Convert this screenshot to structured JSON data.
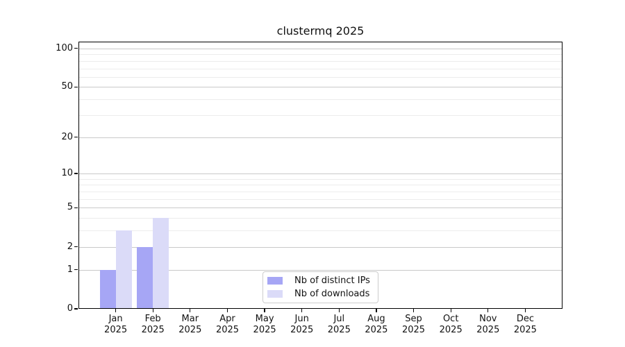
{
  "title": "clustermq 2025",
  "chart_data": {
    "type": "bar",
    "title": "clustermq 2025",
    "categories": [
      "Jan",
      "Feb",
      "Mar",
      "Apr",
      "May",
      "Jun",
      "Jul",
      "Aug",
      "Sep",
      "Oct",
      "Nov",
      "Dec"
    ],
    "year_label": "2025",
    "series": [
      {
        "name": "Nb of distinct IPs",
        "color": "#a6a6f5",
        "values": [
          1,
          2,
          0,
          0,
          0,
          0,
          0,
          0,
          0,
          0,
          0,
          0
        ]
      },
      {
        "name": "Nb of downloads",
        "color": "#dbdbf8",
        "values": [
          3,
          4,
          0,
          0,
          0,
          0,
          0,
          0,
          0,
          0,
          0,
          0
        ]
      }
    ],
    "xlabel": "",
    "ylabel": "",
    "yscale": "log1p",
    "yticks": [
      0,
      1,
      2,
      5,
      10,
      20,
      50,
      100
    ],
    "minor_gridlines": [
      3,
      4,
      6,
      7,
      8,
      9,
      30,
      40,
      60,
      70,
      80,
      90
    ],
    "ylim": [
      0,
      113
    ],
    "grid": true,
    "legend_position": "lower center"
  },
  "colors": {
    "major_grid": "#c9c9c9",
    "minor_grid": "#ececec",
    "spine": "#000000",
    "background": "#ffffff"
  }
}
